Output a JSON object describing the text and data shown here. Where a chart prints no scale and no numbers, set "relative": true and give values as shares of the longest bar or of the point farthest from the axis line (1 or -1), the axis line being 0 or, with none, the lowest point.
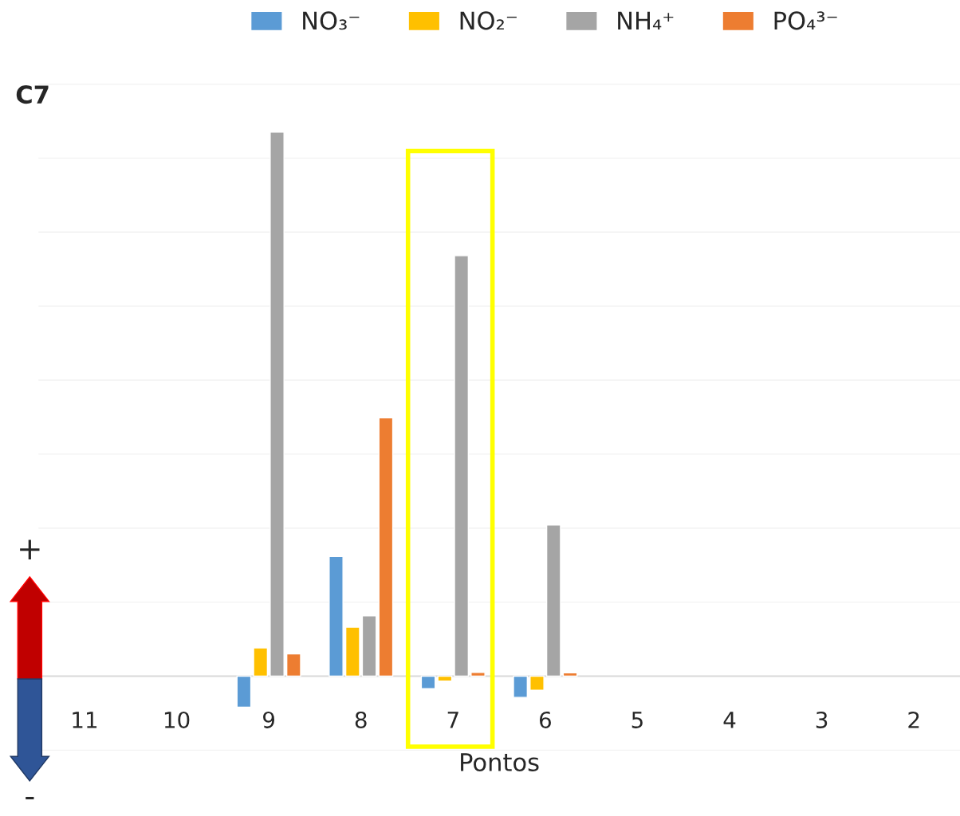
{
  "chart_data": {
    "type": "bar",
    "title": "C7",
    "xlabel": "Pontos",
    "relative": true,
    "categories": [
      "11",
      "10",
      "9",
      "8",
      "7",
      "6",
      "5",
      "4",
      "3",
      "2"
    ],
    "series": [
      {
        "name": "NO₃⁻",
        "color": "#5b9bd5",
        "values": [
          null,
          null,
          -0.057,
          0.22,
          -0.023,
          -0.039,
          null,
          null,
          null,
          null
        ]
      },
      {
        "name": "NO₂⁻",
        "color": "#ffc000",
        "values": [
          null,
          null,
          0.052,
          0.09,
          -0.009,
          -0.026,
          null,
          null,
          null,
          null
        ]
      },
      {
        "name": "NH₄⁺",
        "color": "#a5a5a5",
        "values": [
          null,
          null,
          1,
          0.111,
          0.773,
          0.278,
          null,
          null,
          null,
          null
        ]
      },
      {
        "name": "PO₄³⁻",
        "color": "#ed7d31",
        "values": [
          null,
          null,
          0.041,
          0.475,
          0.007,
          0.006,
          null,
          null,
          null,
          null
        ]
      }
    ],
    "annotations": [
      "+",
      "-"
    ],
    "grid": "y",
    "legend": "top"
  }
}
